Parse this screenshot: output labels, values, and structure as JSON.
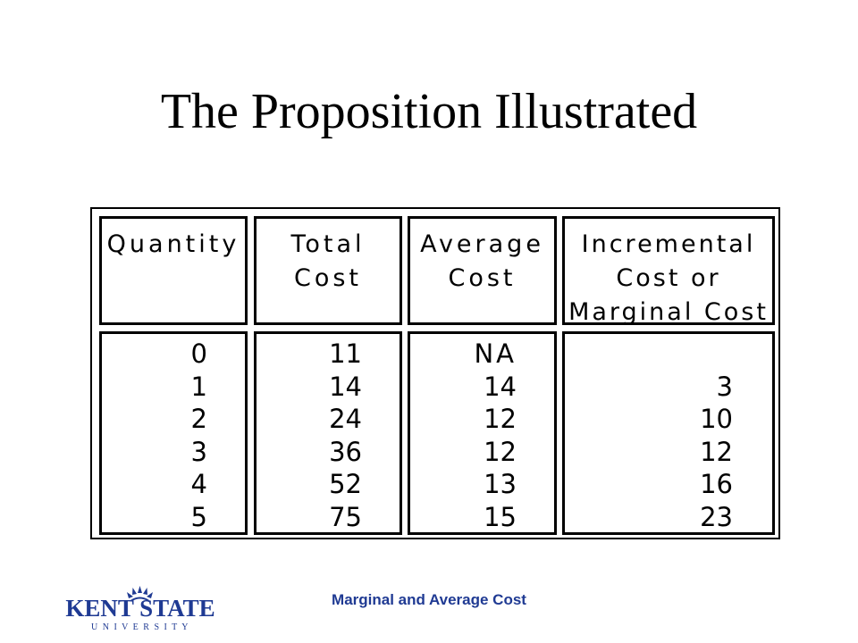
{
  "title": "The Proposition Illustrated",
  "table": {
    "headers": [
      [
        "Quantity"
      ],
      [
        "Total",
        "Cost"
      ],
      [
        "Average",
        "Cost"
      ],
      [
        "Incremental",
        "Cost or",
        "Marginal Cost"
      ]
    ],
    "columns": {
      "quantity": [
        "0",
        "1",
        "2",
        "3",
        "4",
        "5"
      ],
      "total_cost": [
        "11",
        "14",
        "24",
        "36",
        "52",
        "75"
      ],
      "average_cost": [
        "NA",
        "14",
        "12",
        "12",
        "13",
        "15"
      ],
      "marginal_cost": [
        "",
        "3",
        "10",
        "12",
        "16",
        "23"
      ]
    }
  },
  "footer": "Marginal and Average Cost",
  "logo": {
    "line1": "KENT STATE",
    "line2": "U N I V E R S I T Y",
    "color": "#1f3a93"
  }
}
